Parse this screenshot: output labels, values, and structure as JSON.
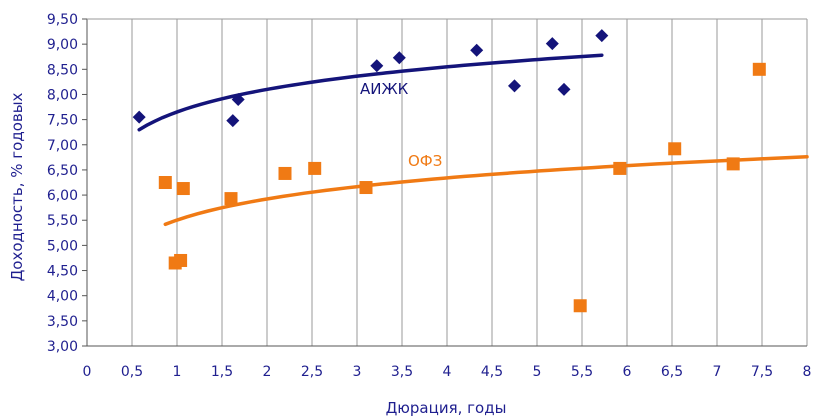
{
  "chart_data": {
    "type": "scatter",
    "xlabel": "Дюрация, годы",
    "ylabel": "Доходность, % годовых",
    "xlim": [
      0,
      8
    ],
    "ylim": [
      3.0,
      9.5
    ],
    "x_ticks": [
      "0",
      "0,5",
      "1",
      "1,5",
      "2",
      "2,5",
      "3",
      "3,5",
      "4",
      "4,5",
      "5",
      "5,5",
      "6",
      "6,5",
      "7",
      "7,5",
      "8"
    ],
    "y_ticks": [
      "3,00",
      "3,50",
      "4,00",
      "4,50",
      "5,00",
      "5,50",
      "6,00",
      "6,50",
      "7,00",
      "7,50",
      "8,00",
      "8,50",
      "9,00",
      "9,50"
    ],
    "grid": "vertical",
    "series": [
      {
        "name": "АИЖК",
        "marker": "diamond",
        "color": "#14147a",
        "points": [
          [
            0.58,
            7.55
          ],
          [
            1.62,
            7.48
          ],
          [
            1.68,
            7.9
          ],
          [
            3.22,
            8.57
          ],
          [
            3.47,
            8.73
          ],
          [
            4.33,
            8.88
          ],
          [
            4.75,
            8.17
          ],
          [
            5.17,
            9.01
          ],
          [
            5.3,
            8.1
          ],
          [
            5.72,
            9.17
          ]
        ],
        "trend": {
          "type": "log",
          "x_start": 0.58,
          "x_end": 5.72,
          "y_start": 7.3,
          "y_end": 8.78
        }
      },
      {
        "name": "ОФЗ",
        "marker": "square",
        "color": "#f07a14",
        "points": [
          [
            0.87,
            6.25
          ],
          [
            0.98,
            4.65
          ],
          [
            1.04,
            4.7
          ],
          [
            1.07,
            6.13
          ],
          [
            1.6,
            5.93
          ],
          [
            2.2,
            6.43
          ],
          [
            2.53,
            6.53
          ],
          [
            3.1,
            6.15
          ],
          [
            5.48,
            3.8
          ],
          [
            5.92,
            6.53
          ],
          [
            6.53,
            6.92
          ],
          [
            7.18,
            6.62
          ],
          [
            7.47,
            8.5
          ]
        ],
        "trend": {
          "type": "log",
          "x_start": 0.87,
          "x_end": 8.0,
          "y_start": 5.42,
          "y_end": 6.76
        }
      }
    ]
  }
}
